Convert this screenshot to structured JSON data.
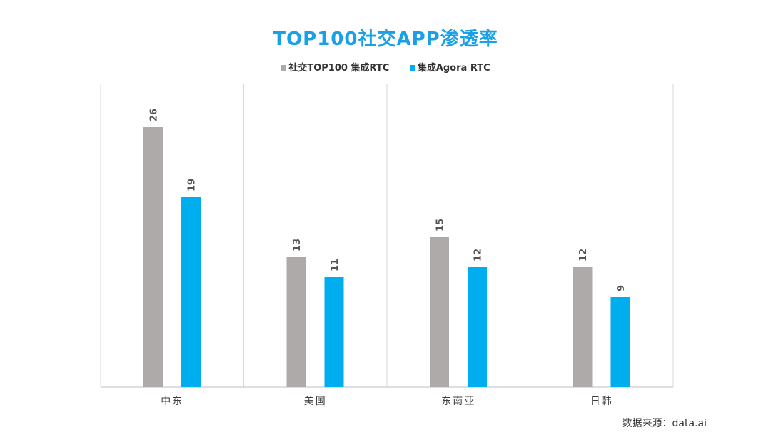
{
  "chart_data": {
    "type": "bar",
    "title": "TOP100社交APP渗透率",
    "categories": [
      "中东",
      "美国",
      "东南亚",
      "日韩"
    ],
    "series": [
      {
        "name": "社交TOP100 集成RTC",
        "color": "#aeaaaa",
        "values": [
          26,
          13,
          15,
          12
        ]
      },
      {
        "name": "集成Agora RTC",
        "color": "#00aeef",
        "values": [
          19,
          11,
          12,
          9
        ]
      }
    ],
    "ylim": [
      0,
      30
    ],
    "grid": false,
    "legend_position": "top-center",
    "xlabel": "",
    "ylabel": ""
  },
  "source_text": "数据来源：data.ai"
}
